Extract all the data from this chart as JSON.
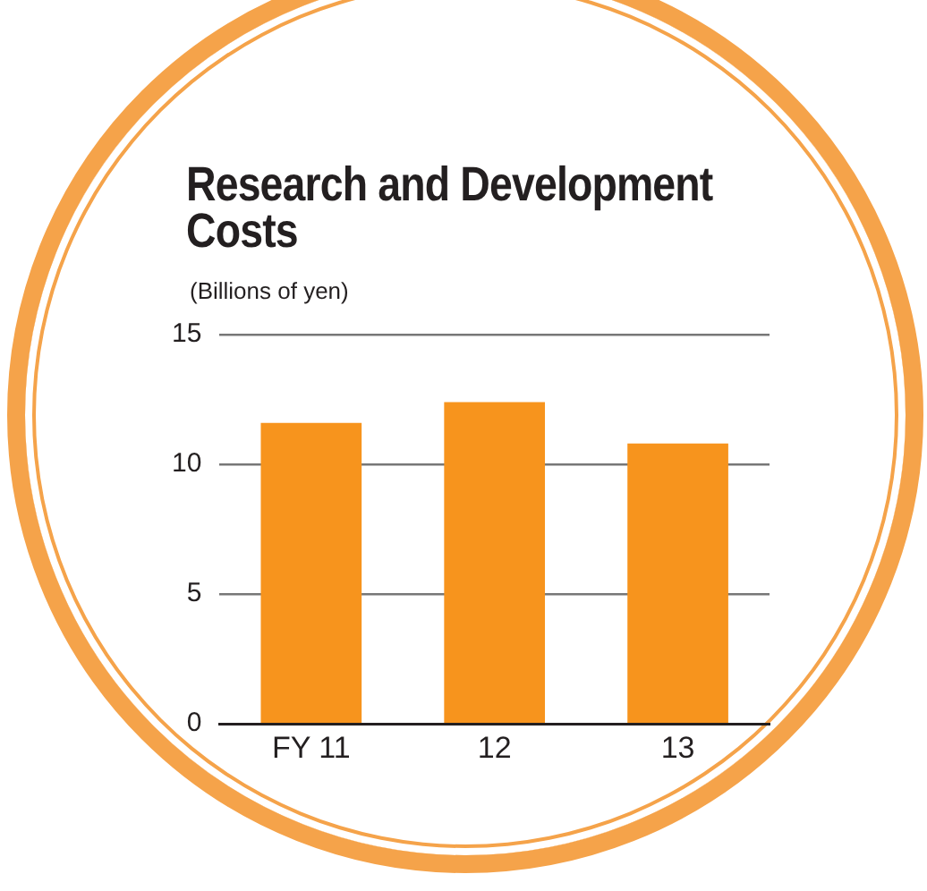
{
  "chart_data": {
    "type": "bar",
    "title": "Research and Development Costs",
    "subtitle": "(Billions of yen)",
    "categories": [
      "FY 11",
      "12",
      "13"
    ],
    "values": [
      11.6,
      12.4,
      10.8
    ],
    "color": "#f7941d",
    "ylim": [
      0,
      15
    ],
    "yticks": [
      0,
      5,
      10,
      15
    ],
    "grid": "y",
    "legend": false
  }
}
